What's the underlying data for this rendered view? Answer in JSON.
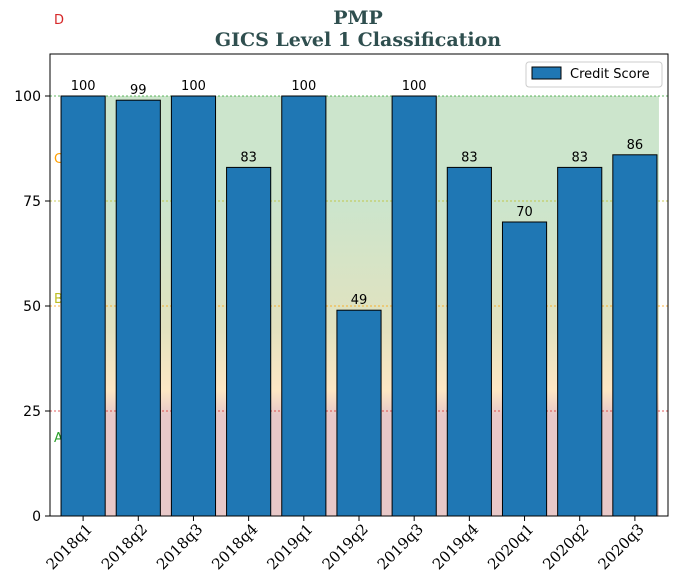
{
  "chart_data": {
    "type": "bar",
    "title": "PMP",
    "subtitle": "GICS Level 1 Classification",
    "categories": [
      "2018q1",
      "2018q2",
      "2018q3",
      "2018q4",
      "2019q1",
      "2019q2",
      "2019q3",
      "2019q4",
      "2020q1",
      "2020q2",
      "2020q3"
    ],
    "series": [
      {
        "name": "Credit Score",
        "values": [
          100,
          99,
          100,
          83,
          100,
          49,
          100,
          83,
          70,
          83,
          86
        ],
        "color": "#1f77b4"
      }
    ],
    "ylim": [
      0,
      110
    ],
    "yticks": [
      0,
      25,
      50,
      75,
      100
    ],
    "legend_position": "top-right",
    "zones": [
      {
        "label": "A",
        "from": 0,
        "to": 25,
        "color": "#e8c8c8",
        "label_color": "#2ca02c"
      },
      {
        "label": "B",
        "from": 25,
        "to": 50,
        "color": "#fde7c4",
        "label_color": "#bcbd22"
      },
      {
        "label": "C",
        "from": 50,
        "to": 75,
        "color": "#d8e2c0",
        "label_color": "#ff9f00"
      },
      {
        "label": "D",
        "from": 75,
        "to": 100,
        "color": "#cce5cc",
        "label_color": "#d62728"
      }
    ],
    "threshold_lines": [
      {
        "value": 25,
        "color": "#d62728"
      },
      {
        "value": 50,
        "color": "#ff9f00"
      },
      {
        "value": 75,
        "color": "#bcbd22"
      },
      {
        "value": 100,
        "color": "#2ca02c"
      }
    ]
  }
}
